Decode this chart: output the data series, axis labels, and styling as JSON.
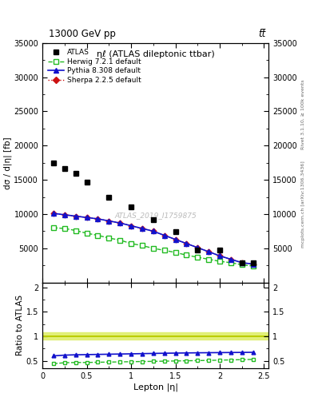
{
  "title_top": "13000 GeV pp",
  "title_top_right": "tt̅",
  "plot_title": "ηℓ (ATLAS dileptonic ttbar)",
  "watermark": "ATLAS_2019_I1759875",
  "xlabel": "Lepton |η|",
  "ylabel": "dσ / d|η| [fb]",
  "right_label_top": "Rivet 3.1.10, ≥ 100k events",
  "right_label_bot": "mcplots.cern.ch [arXiv:1306.3436]",
  "atlas_x": [
    0.125,
    0.25,
    0.375,
    0.5,
    0.75,
    1.0,
    1.25,
    1.5,
    1.75,
    2.0,
    2.25,
    2.375
  ],
  "atlas_y": [
    17500,
    16700,
    16000,
    14700,
    12500,
    11000,
    9200,
    7400,
    4800,
    4800,
    2900,
    2900
  ],
  "herwig_x": [
    0.125,
    0.25,
    0.375,
    0.5,
    0.625,
    0.75,
    0.875,
    1.0,
    1.125,
    1.25,
    1.375,
    1.5,
    1.625,
    1.75,
    1.875,
    2.0,
    2.125,
    2.25,
    2.375
  ],
  "herwig_y": [
    8000,
    7900,
    7600,
    7200,
    6900,
    6500,
    6200,
    5700,
    5400,
    5000,
    4700,
    4400,
    4000,
    3700,
    3400,
    3100,
    2900,
    2600,
    2400
  ],
  "pythia_x": [
    0.125,
    0.25,
    0.375,
    0.5,
    0.625,
    0.75,
    0.875,
    1.0,
    1.125,
    1.25,
    1.375,
    1.5,
    1.625,
    1.75,
    1.875,
    2.0,
    2.125,
    2.25,
    2.375
  ],
  "pythia_y": [
    10100,
    9900,
    9700,
    9500,
    9300,
    9000,
    8700,
    8300,
    7900,
    7500,
    6900,
    6300,
    5700,
    5100,
    4500,
    3900,
    3400,
    2900,
    2700
  ],
  "herwig_ratio": [
    0.44,
    0.46,
    0.465,
    0.465,
    0.47,
    0.473,
    0.477,
    0.481,
    0.485,
    0.488,
    0.492,
    0.496,
    0.5,
    0.504,
    0.508,
    0.512,
    0.518,
    0.523,
    0.528
  ],
  "pythia_ratio": [
    0.6,
    0.615,
    0.622,
    0.626,
    0.63,
    0.634,
    0.638,
    0.642,
    0.646,
    0.65,
    0.654,
    0.657,
    0.66,
    0.663,
    0.665,
    0.667,
    0.669,
    0.671,
    0.673
  ],
  "atlas_color": "black",
  "herwig_color": "#22bb22",
  "pythia_color": "#1111cc",
  "sherpa_color": "#cc1111",
  "band_color": "#ddee66",
  "band_line_color": "#bbcc00",
  "ylim_main": [
    0,
    35001
  ],
  "ylim_ratio": [
    0.35,
    2.1
  ],
  "xlim": [
    0.0,
    2.55
  ],
  "yticks_main": [
    5000,
    10000,
    15000,
    20000,
    25000,
    30000,
    35000
  ],
  "yticks_ratio": [
    0.5,
    1.0,
    1.5,
    2.0
  ],
  "ratio_ytick_labels": [
    "0.5",
    "1",
    "1.5",
    "2"
  ],
  "fig_width": 3.93,
  "fig_height": 5.12
}
